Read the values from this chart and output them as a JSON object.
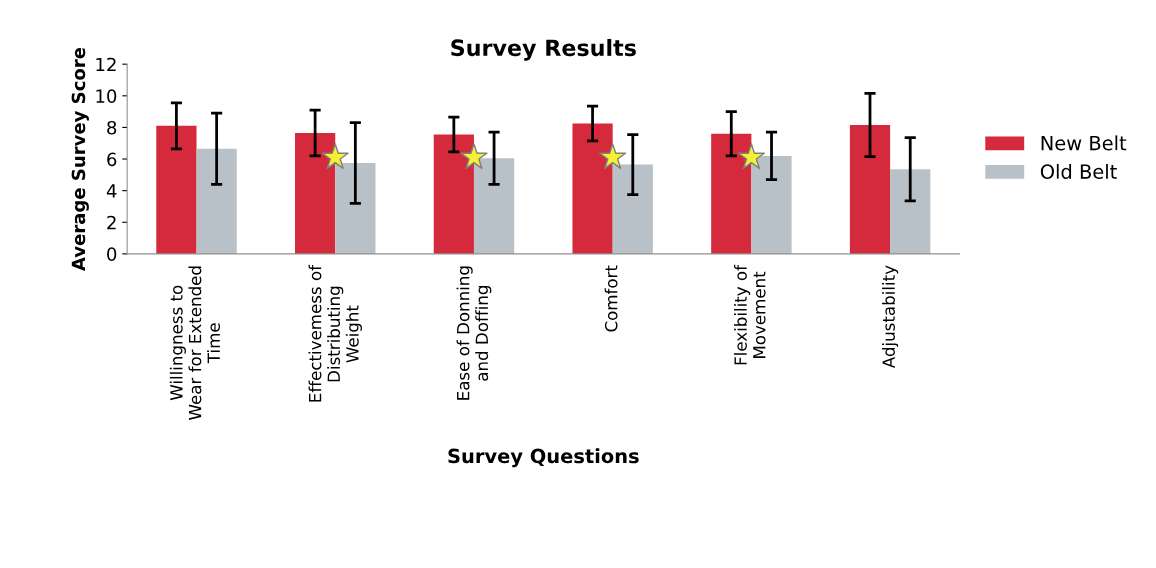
{
  "chart_data": {
    "type": "bar",
    "title": "Survey Results",
    "xlabel": "Survey Questions",
    "ylabel": "Average Survey Score",
    "categories": [
      "Willingness to\nWear for Extended\nTime",
      "Effectivemess of\nDistributing\nWeight",
      "Ease of Donning\nand Doffing",
      "Comfort",
      "Flexibility of\nMovement",
      "Adjustability"
    ],
    "series": [
      {
        "name": "New Belt",
        "color": "#d42a3c",
        "values": [
          8.1,
          7.65,
          7.55,
          8.25,
          7.6,
          8.15
        ],
        "errors": [
          1.45,
          1.45,
          1.1,
          1.1,
          1.4,
          2.0
        ]
      },
      {
        "name": "Old Belt",
        "color": "#b8c0c8",
        "values": [
          6.65,
          5.75,
          6.05,
          5.65,
          6.2,
          5.35
        ],
        "errors": [
          2.25,
          2.55,
          1.65,
          1.9,
          1.5,
          2.0
        ]
      },
      {
        "type": "scatter",
        "marker": "star",
        "color": "#f5f032",
        "x": [
          "Willingness to\nWear for Extended\nTime",
          "Effectivemess of\nDistributing\nWeight",
          "Ease of Donning\nand Doffing",
          "Comfort",
          "Flexibility of\nMovement",
          "Adjustability"
        ],
        "values": [
          null,
          6.1,
          6.1,
          6.1,
          6.1,
          null
        ]
      }
    ],
    "ylim": [
      0,
      12
    ],
    "yticks": [
      0,
      2,
      4,
      6,
      8,
      10,
      12
    ],
    "grid": false,
    "legend": "right"
  }
}
